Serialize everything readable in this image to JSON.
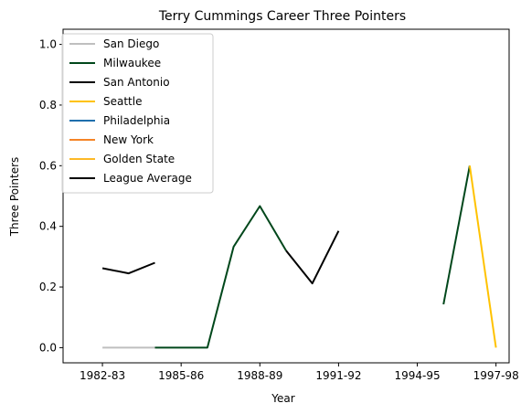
{
  "chart_data": {
    "type": "line",
    "title": "Terry Cummings Career Three Pointers",
    "xlabel": "Year",
    "ylabel": "Three Pointers",
    "x_tick_labels": [
      "1982-83",
      "1985-86",
      "1988-89",
      "1991-92",
      "1994-95",
      "1997-98"
    ],
    "y_tick_labels": [
      "0.0",
      "0.2",
      "0.4",
      "0.6",
      "0.8",
      "1.0"
    ],
    "xlim": [
      "1982-83",
      "1999-00"
    ],
    "ylim": [
      -0.05,
      1.05
    ],
    "legend_position": "upper-left",
    "grid": false,
    "series": [
      {
        "name": "San Diego",
        "color": "#bfbfbf",
        "x": [
          "1982-83",
          "1983-84",
          "1984-85"
        ],
        "values": [
          0.0,
          0.0,
          0.0
        ]
      },
      {
        "name": "Milwaukee",
        "color": "#00471b",
        "segments": [
          {
            "x": [
              "1984-85",
              "1985-86",
              "1986-87",
              "1987-88",
              "1988-89",
              "1989-90"
            ],
            "values": [
              0.0,
              0.0,
              0.0,
              0.333,
              0.467,
              0.32
            ]
          },
          {
            "x": [
              "1995-96",
              "1996-97"
            ],
            "values": [
              0.143,
              0.6
            ]
          }
        ]
      },
      {
        "name": "San Antonio",
        "color": "#000000",
        "x": [
          "1989-90",
          "1990-91",
          "1991-92"
        ],
        "values": [
          0.32,
          0.212,
          0.385
        ]
      },
      {
        "name": "Seattle",
        "color": "#ffc200",
        "x": [
          "1996-97",
          "1997-98"
        ],
        "values": [
          0.6,
          0.0
        ]
      },
      {
        "name": "Philadelphia",
        "color": "#1f6fad",
        "x": [],
        "values": []
      },
      {
        "name": "New York",
        "color": "#f58426",
        "x": [],
        "values": []
      },
      {
        "name": "Golden State",
        "color": "#fdb927",
        "x": [],
        "values": []
      },
      {
        "name": "League Average",
        "color": "#000000",
        "x": [
          "1982-83",
          "1983-84",
          "1984-85"
        ],
        "values": [
          0.262,
          0.245,
          0.28
        ]
      }
    ]
  }
}
